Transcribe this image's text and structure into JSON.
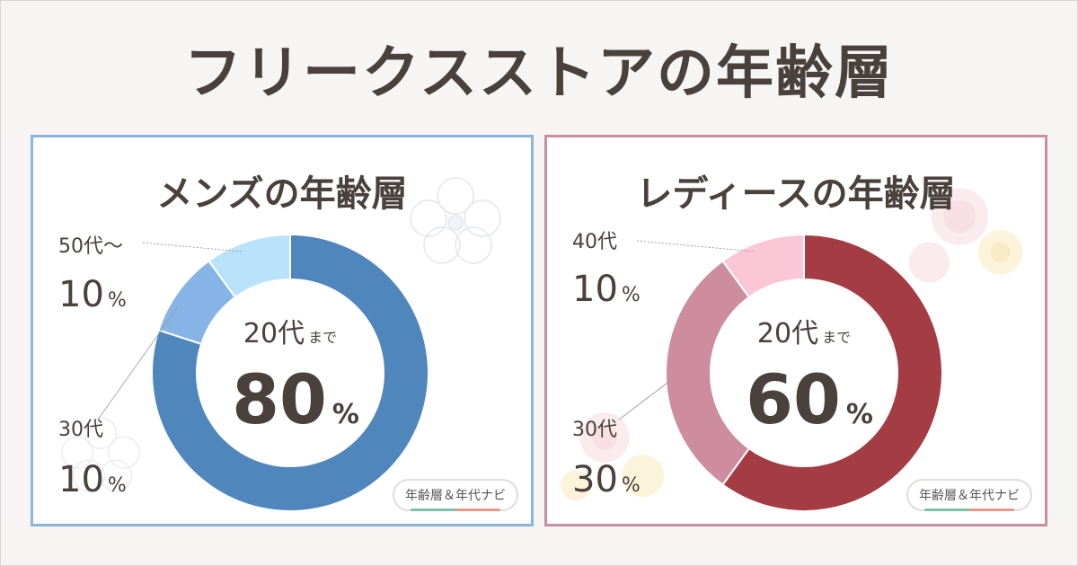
{
  "title": "フリークスストアの年齢層",
  "site_badge": "年齢層＆年代ナビ",
  "chart_data": [
    {
      "type": "pie",
      "title": "メンズの年齢層",
      "categories": [
        "20代まで",
        "30代",
        "50代～"
      ],
      "values": [
        80,
        10,
        10
      ],
      "colors": [
        "#4f86bb",
        "#86b4e6",
        "#b9e3fa"
      ],
      "labels": [
        {
          "category": "20代",
          "suffix": "まで",
          "value": "80",
          "unit": "%"
        },
        {
          "category": "30代",
          "value": "10",
          "unit": "%"
        },
        {
          "category": "50代～",
          "value": "10",
          "unit": "%"
        }
      ]
    },
    {
      "type": "pie",
      "title": "レディースの年齢層",
      "categories": [
        "20代まで",
        "30代",
        "40代"
      ],
      "values": [
        60,
        30,
        10
      ],
      "colors": [
        "#a33c43",
        "#cd8d9e",
        "#fbc6d6"
      ],
      "labels": [
        {
          "category": "20代",
          "suffix": "まで",
          "value": "60",
          "unit": "%"
        },
        {
          "category": "30代",
          "value": "30",
          "unit": "%"
        },
        {
          "category": "40代",
          "value": "10",
          "unit": "%"
        }
      ]
    }
  ]
}
